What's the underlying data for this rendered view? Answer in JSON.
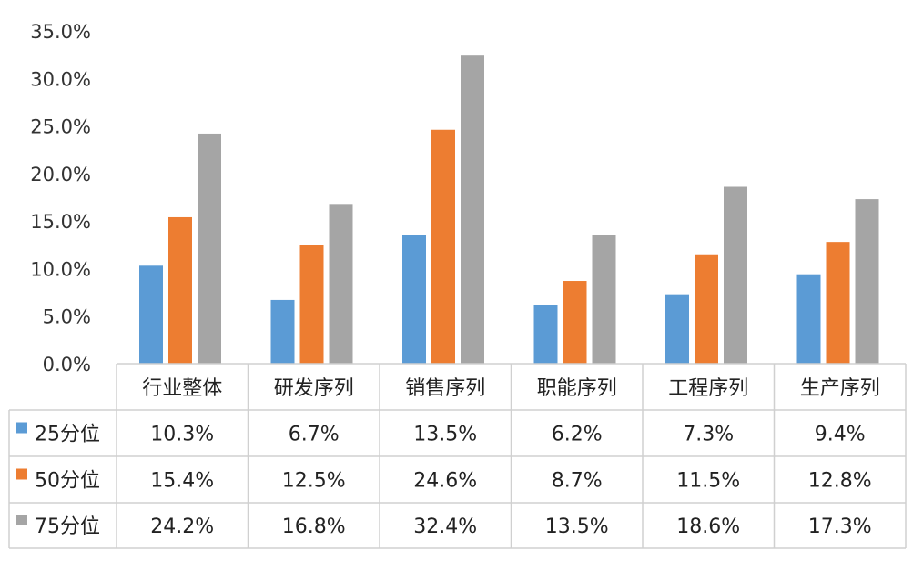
{
  "chart_data": {
    "type": "bar",
    "categories": [
      "行业整体",
      "研发序列",
      "销售序列",
      "职能序列",
      "工程序列",
      "生产序列"
    ],
    "series": [
      {
        "name": "25分位",
        "color": "#5b9bd5",
        "values": [
          10.3,
          6.7,
          13.5,
          6.2,
          7.3,
          9.4
        ],
        "labels": [
          "10.3%",
          "6.7%",
          "13.5%",
          "6.2%",
          "7.3%",
          "9.4%"
        ]
      },
      {
        "name": "50分位",
        "color": "#ed7d31",
        "values": [
          15.4,
          12.5,
          24.6,
          8.7,
          11.5,
          12.8
        ],
        "labels": [
          "15.4%",
          "12.5%",
          "24.6%",
          "8.7%",
          "11.5%",
          "12.8%"
        ]
      },
      {
        "name": "75分位",
        "color": "#a5a5a5",
        "values": [
          24.2,
          16.8,
          32.4,
          13.5,
          18.6,
          17.3
        ],
        "labels": [
          "24.2%",
          "16.8%",
          "32.4%",
          "13.5%",
          "18.6%",
          "17.3%"
        ]
      }
    ],
    "ylim": [
      0,
      35
    ],
    "yticks": [
      "0.0%",
      "5.0%",
      "10.0%",
      "15.0%",
      "20.0%",
      "25.0%",
      "30.0%",
      "35.0%"
    ],
    "grid": false,
    "legend": "data-table",
    "title": "",
    "xlabel": "",
    "ylabel": ""
  }
}
